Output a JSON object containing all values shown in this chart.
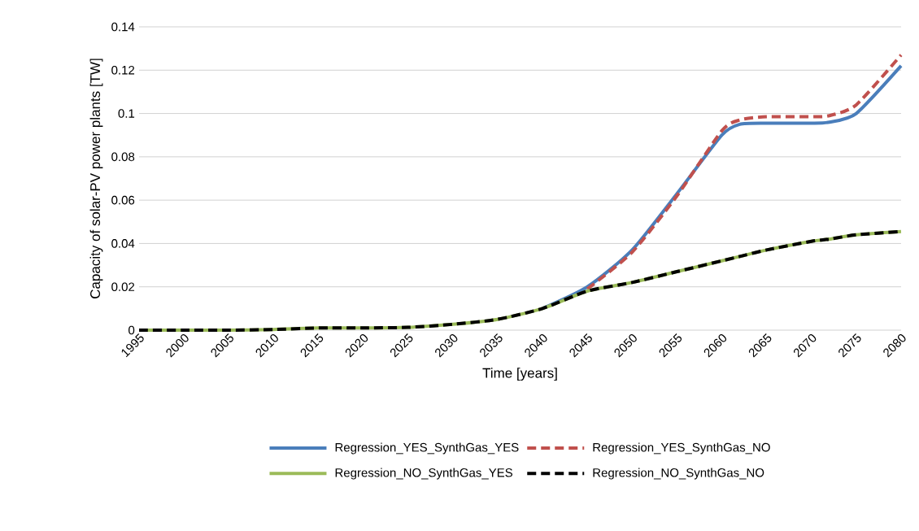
{
  "chart_data": {
    "type": "line",
    "xlabel": "Time [years]",
    "ylabel": "Capacity of solar-PV power plants [TW]",
    "x": [
      1995,
      2000,
      2005,
      2010,
      2015,
      2020,
      2025,
      2030,
      2035,
      2040,
      2045,
      2050,
      2055,
      2060,
      2062,
      2065,
      2070,
      2072,
      2075,
      2080
    ],
    "series": [
      {
        "name": "Regression_YES_SynthGas_YES",
        "color": "#4a7ebb",
        "line_style": "solid",
        "values": [
          null,
          null,
          null,
          null,
          null,
          null,
          null,
          null,
          null,
          0.01,
          0.02,
          0.037,
          0.063,
          0.09,
          0.095,
          0.0955,
          0.0955,
          0.096,
          0.1,
          0.122
        ]
      },
      {
        "name": "Regression_YES_SynthGas_NO",
        "color": "#c0504d",
        "line_style": "dashed",
        "values": [
          null,
          null,
          null,
          null,
          null,
          null,
          null,
          null,
          null,
          null,
          0.019,
          0.036,
          0.062,
          0.092,
          0.097,
          0.0985,
          0.0985,
          0.099,
          0.104,
          0.127
        ]
      },
      {
        "name": "Regression_NO_SynthGas_YES",
        "color": "#9bbb59",
        "line_style": "solid",
        "values": [
          0,
          0,
          0,
          0.0003,
          0.001,
          0.001,
          0.0013,
          0.0027,
          0.005,
          0.01,
          0.018,
          0.022,
          0.027,
          0.032,
          0.034,
          0.037,
          0.041,
          0.042,
          0.044,
          0.0455
        ]
      },
      {
        "name": "Regression_NO_SynthGas_NO",
        "color": "#000000",
        "line_style": "dashed",
        "values": [
          0,
          0,
          0,
          0.0003,
          0.001,
          0.001,
          0.0013,
          0.0027,
          0.005,
          0.01,
          0.018,
          0.022,
          0.027,
          0.032,
          0.034,
          0.037,
          0.041,
          0.042,
          0.044,
          0.0455
        ]
      }
    ],
    "xlim": [
      1995,
      2080
    ],
    "xticks": [
      1995,
      2000,
      2005,
      2010,
      2015,
      2020,
      2025,
      2030,
      2035,
      2040,
      2045,
      2050,
      2055,
      2060,
      2065,
      2070,
      2075,
      2080
    ],
    "ylim": [
      0,
      0.14
    ],
    "yticks": [
      0,
      0.02,
      0.04,
      0.06,
      0.08,
      0.1,
      0.12,
      0.14
    ],
    "grid": "y",
    "legend": "bottom",
    "marker": "none"
  }
}
